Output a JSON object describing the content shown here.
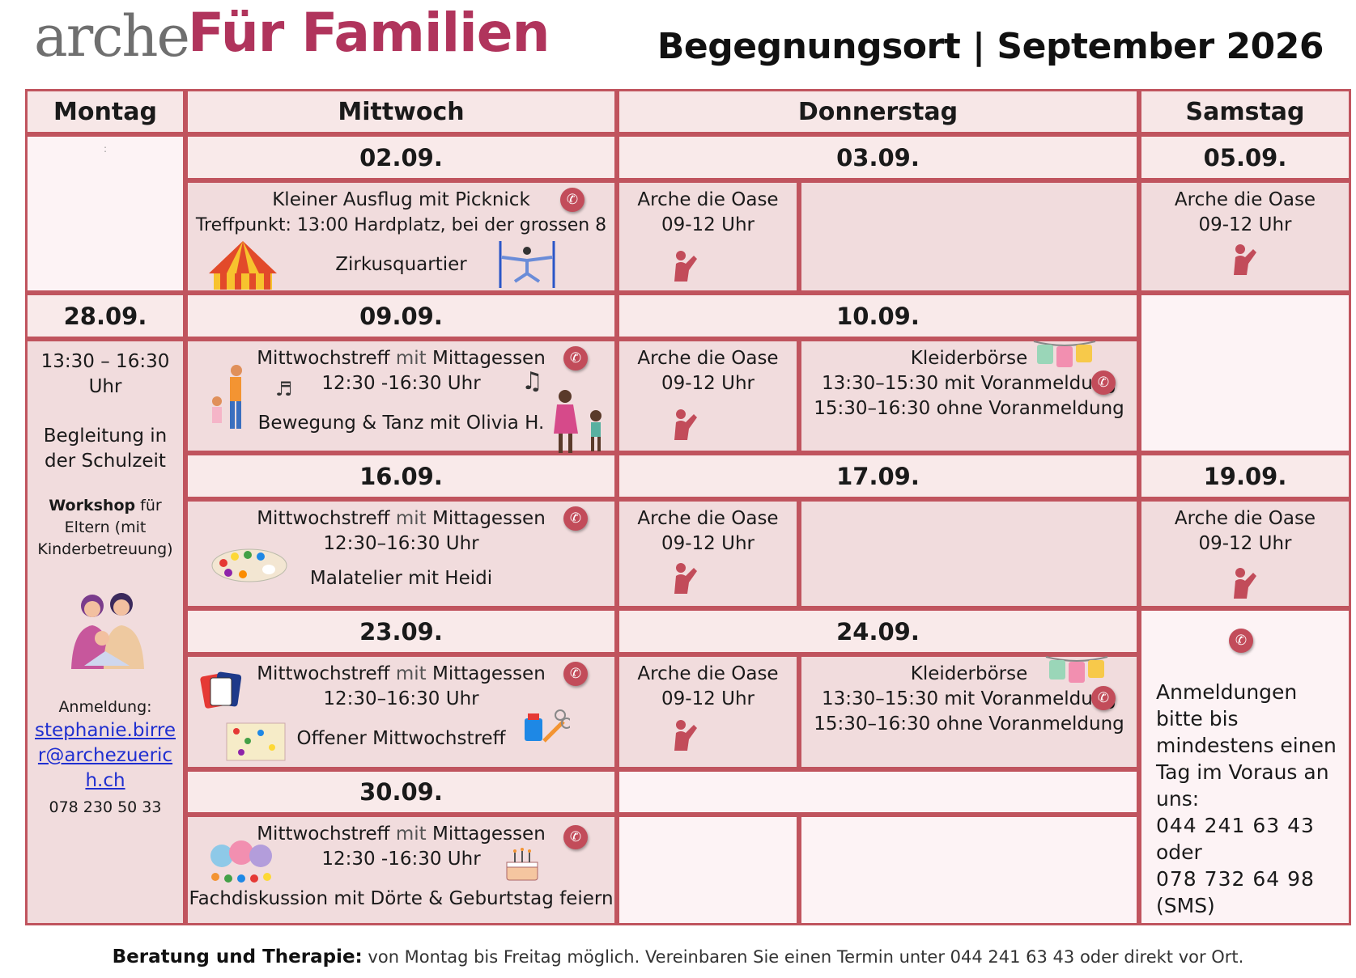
{
  "header": {
    "logo_arche": "arche",
    "logo_brand": "Für Familien",
    "title": "Begegnungsort | September 2026"
  },
  "columns": {
    "montag": "Montag",
    "mittwoch": "Mittwoch",
    "donnerstag": "Donnerstag",
    "samstag": "Samstag"
  },
  "dates": {
    "d0209": "02.09.",
    "d0309": "03.09.",
    "d0509": "05.09.",
    "d2809": "28.09.",
    "d0909": "09.09.",
    "d1009": "10.09.",
    "d1609": "16.09.",
    "d1709": "17.09.",
    "d1909": "19.09.",
    "d2309": "23.09.",
    "d2409": "24.09.",
    "d3009": "30.09."
  },
  "oase": {
    "title": "Arche die Oase",
    "time": "09-12 Uhr"
  },
  "events": {
    "w1": {
      "title": "Kleiner Ausflug mit Picknick",
      "line2": "Treffpunkt: 13:00 Hardplatz, bei der grossen 8",
      "line3": "Zirkusquartier"
    },
    "w2": {
      "title_a": "Mittwochstreff",
      "title_b": " mit ",
      "title_c": "Mittagessen",
      "time": "12:30 -16:30 Uhr",
      "line3": "Bewegung & Tanz mit Olivia H."
    },
    "w3": {
      "title_a": "Mittwochstreff",
      "title_b": " mit ",
      "title_c": "Mittagessen",
      "time": "12:30–16:30 Uhr",
      "line3": "Malatelier mit Heidi"
    },
    "w4": {
      "title_a": "Mittwochstreff",
      "title_b": " mit ",
      "title_c": "Mittagessen",
      "time": "12:30–16:30 Uhr",
      "line3": "Offener Mittwochstreff"
    },
    "w5": {
      "title_a": "Mittwochstreff",
      "title_b": " mit ",
      "title_c": "Mittagessen",
      "time": "12:30 -16:30 Uhr",
      "line3": "Fachdiskussion mit Dörte & Geburtstag feiern"
    },
    "kleider": {
      "title": "Kleiderbörse",
      "line2": "13:30–15:30 mit Voranmeldung",
      "line3": "15:30–16:30 ohne Voranmeldung"
    }
  },
  "montag_block": {
    "colon": ":",
    "time": "13:30 – 16:30 Uhr",
    "title": "Begleitung in der Schulzeit",
    "workshop_a": "Workshop",
    "workshop_b": " für Eltern (mit Kinderbetreuung)",
    "anmeldung": "Anmeldung:",
    "email": "stephanie.birrer@archezuerich.ch",
    "phone": "078 230 50 33"
  },
  "samstag_note": {
    "text": "Anmeldungen bitte bis mindestens einen Tag im Voraus an uns:",
    "phone1": "044 241 63 43",
    "oder": "oder",
    "phone2": "078 732 64 98",
    "sms": "(SMS)"
  },
  "footer": {
    "label": "Beratung und Therapie:",
    "text": " von Montag bis Freitag möglich. Vereinbaren Sie einen Termin unter 044 241 63 43 oder direkt vor Ort."
  },
  "icons": {
    "phone": "phone-icon",
    "waving_person": "waving-person-icon"
  },
  "colors": {
    "brand": "#b0345c",
    "border": "#c0545e",
    "cell_bg": "#f1dcdd",
    "header_bg": "#f7e7e7",
    "pale_bg": "#fdf3f5",
    "phone_icon": "#c24c5a",
    "link": "#1f2fd0"
  }
}
